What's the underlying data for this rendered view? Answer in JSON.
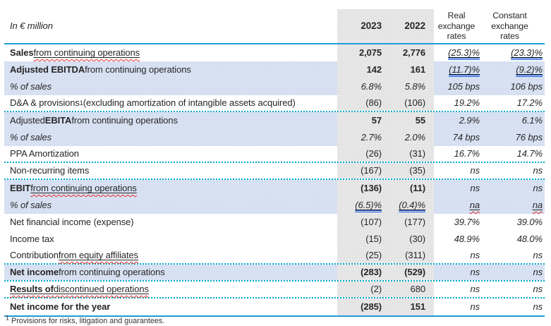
{
  "header": {
    "unit_label": "In € million",
    "col_2023": "2023",
    "col_2022": "2022",
    "col_real": "Real exchange rates",
    "col_constant": "Constant exchange rates"
  },
  "colors": {
    "accent_line": "#1f9bd8",
    "dotted_divider": "#00a8cf",
    "row_highlight": "#d9e2f3",
    "year_column_highlight": "#e8e7e7",
    "spellcheck_red": "#e02b20",
    "grammar_blue": "#1d5bd8"
  },
  "footnote": {
    "marker": "1",
    "text": " Provisions for risks, litigation and guarantees."
  },
  "rows": [
    {
      "name": "sales",
      "bg": "white",
      "divider": "none",
      "label": [
        {
          "t": "Sales",
          "b": 1
        },
        {
          "t": " "
        },
        {
          "t": "from continuing operations",
          "usq": 1
        }
      ],
      "v2023": {
        "t": "2,075",
        "b": 1
      },
      "v2022": {
        "t": "2,776",
        "b": 1
      },
      "real": {
        "t": "(25.3)%",
        "dbl": 1
      },
      "constant": {
        "t": "(23.3)%",
        "dbl": 1
      }
    },
    {
      "name": "adjusted-ebitda",
      "bg": "blue",
      "divider": "none",
      "label": [
        {
          "t": "Adjusted EBITDA",
          "b": 1
        },
        {
          "t": " from continuing operations"
        }
      ],
      "v2023": {
        "t": "142",
        "b": 1
      },
      "v2022": {
        "t": "161",
        "b": 1
      },
      "real": {
        "t": "(11.7)%",
        "dbl": 1
      },
      "constant": {
        "t": "(9.2)%",
        "dbl": 1
      }
    },
    {
      "name": "ebitda-margin",
      "bg": "blue",
      "divider": "none",
      "label": [
        {
          "t": "% of sales",
          "i": 1
        }
      ],
      "v2023": {
        "t": "6.8%",
        "i": 1
      },
      "v2022": {
        "t": "5.8%",
        "i": 1
      },
      "real": {
        "t": "105 bps"
      },
      "constant": {
        "t": "106 bps"
      }
    },
    {
      "name": "da-provisions",
      "bg": "white",
      "divider": "dotted",
      "label": [
        {
          "t": "D&A & provisions"
        },
        {
          "t": "1",
          "sup": 1
        },
        {
          "t": " (excluding amortization of intangible assets acquired)"
        }
      ],
      "v2023": {
        "t": "(86)"
      },
      "v2022": {
        "t": "(106)"
      },
      "real": {
        "t": "19.2%"
      },
      "constant": {
        "t": "17.2%"
      }
    },
    {
      "name": "adjusted-ebita",
      "bg": "blue",
      "divider": "none",
      "label": [
        {
          "t": "Adjusted "
        },
        {
          "t": "EBITA",
          "b": 1
        },
        {
          "t": " from continuing operations"
        }
      ],
      "v2023": {
        "t": "57",
        "b": 1
      },
      "v2022": {
        "t": "55",
        "b": 1
      },
      "real": {
        "t": "2.9%"
      },
      "constant": {
        "t": "6.1%"
      }
    },
    {
      "name": "ebita-margin",
      "bg": "blue",
      "divider": "none",
      "label": [
        {
          "t": "% of sales",
          "i": 1
        }
      ],
      "v2023": {
        "t": "2.7%",
        "i": 1
      },
      "v2022": {
        "t": "2.0%",
        "i": 1
      },
      "real": {
        "t": "74 bps"
      },
      "constant": {
        "t": "76 bps"
      }
    },
    {
      "name": "ppa-amortization",
      "bg": "white",
      "divider": "dotted",
      "label": [
        {
          "t": "PPA Amortization"
        }
      ],
      "v2023": {
        "t": "(26)"
      },
      "v2022": {
        "t": "(31)"
      },
      "real": {
        "t": "16.7%"
      },
      "constant": {
        "t": "14.7%"
      }
    },
    {
      "name": "non-recurring-items",
      "bg": "white",
      "divider": "dotted",
      "label": [
        {
          "t": "Non-recurring items"
        }
      ],
      "v2023": {
        "t": "(167)"
      },
      "v2022": {
        "t": "(35)"
      },
      "real": {
        "t": "ns"
      },
      "constant": {
        "t": "ns"
      }
    },
    {
      "name": "ebit",
      "bg": "blue",
      "divider": "none",
      "label": [
        {
          "t": "EBIT",
          "b": 1
        },
        {
          "t": " "
        },
        {
          "t": "from continuing operations",
          "usq": 1
        }
      ],
      "v2023": {
        "t": "(136)",
        "b": 1
      },
      "v2022": {
        "t": "(11)",
        "b": 1
      },
      "real": {
        "t": "ns"
      },
      "constant": {
        "t": "ns"
      }
    },
    {
      "name": "ebit-margin",
      "bg": "blue",
      "divider": "none",
      "label": [
        {
          "t": "% of sales",
          "i": 1
        }
      ],
      "v2023": {
        "t": "(6.5)%",
        "i": 1,
        "dbl": 1
      },
      "v2022": {
        "t": "(0.4)%",
        "i": 1,
        "dbl": 1
      },
      "real": {
        "t": "na",
        "sq": 1
      },
      "constant": {
        "t": "na",
        "sq": 1
      }
    },
    {
      "name": "net-financial-income",
      "bg": "white",
      "divider": "none",
      "label": [
        {
          "t": "Net financial income (expense)"
        }
      ],
      "v2023": {
        "t": "(107)"
      },
      "v2022": {
        "t": "(177)"
      },
      "real": {
        "t": "39.7%"
      },
      "constant": {
        "t": "39.0%"
      }
    },
    {
      "name": "income-tax",
      "bg": "white",
      "divider": "none",
      "label": [
        {
          "t": "Income tax"
        }
      ],
      "v2023": {
        "t": "(15)"
      },
      "v2022": {
        "t": "(30)"
      },
      "real": {
        "t": "48.9%"
      },
      "constant": {
        "t": "48.0%"
      }
    },
    {
      "name": "equity-affiliates",
      "bg": "white",
      "divider": "dotted",
      "label": [
        {
          "t": "Contribution "
        },
        {
          "t": "from equity affiliates",
          "usq": 1
        }
      ],
      "v2023": {
        "t": "(25)"
      },
      "v2022": {
        "t": "(311)"
      },
      "real": {
        "t": "ns"
      },
      "constant": {
        "t": "ns"
      }
    },
    {
      "name": "net-income-continuing",
      "bg": "blue",
      "divider": "dotted",
      "label": [
        {
          "t": "Net income",
          "b": 1
        },
        {
          "t": " from continuing operations"
        }
      ],
      "v2023": {
        "t": "(283)",
        "b": 1
      },
      "v2022": {
        "t": "(529)",
        "b": 1
      },
      "real": {
        "t": "ns"
      },
      "constant": {
        "t": "ns"
      }
    },
    {
      "name": "discontinued-operations",
      "bg": "white",
      "divider": "dotted",
      "label": [
        {
          "t": "Results of",
          "b": 1,
          "usq": 1
        },
        {
          "t": " "
        },
        {
          "t": "discontinued operations",
          "usq": 1
        }
      ],
      "v2023": {
        "t": "(2)"
      },
      "v2022": {
        "t": "680"
      },
      "real": {
        "t": "ns"
      },
      "constant": {
        "t": "ns"
      }
    },
    {
      "name": "net-income-year",
      "bg": "white",
      "divider": "none",
      "label": [
        {
          "t": "Net income for the year",
          "b": 1
        }
      ],
      "v2023": {
        "t": "(285)",
        "b": 1
      },
      "v2022": {
        "t": "151",
        "b": 1
      },
      "real": {
        "t": "ns"
      },
      "constant": {
        "t": "ns"
      }
    }
  ]
}
